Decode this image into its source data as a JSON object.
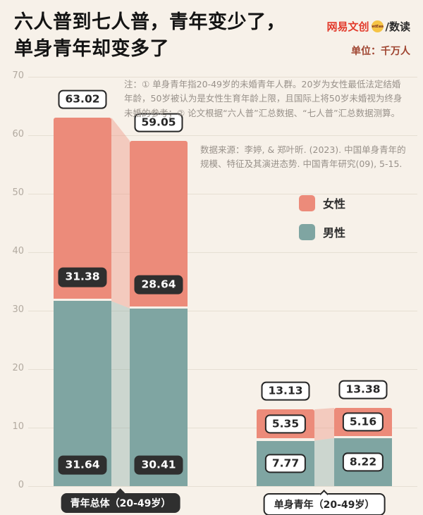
{
  "header": {
    "title_line1": "六人普到七人普，青年变少了，",
    "title_line2": "单身青年却变多了",
    "brand": {
      "name": "网易文创",
      "badge": "NetEase",
      "sub": "/数读"
    },
    "unit": "单位：千万人"
  },
  "notes": "注：① 单身青年指20-49岁的未婚青年人群。20岁为女性最低法定结婚年龄，50岁被认为是女性生育年龄上限，且国际上将50岁未婚视为终身未婚的参考；② 论文根据“六人普”汇总数据、“七人普”汇总数据测算。",
  "source": "数据来源：李婷, & 郑叶昕. (2023). 中国单身青年的规模、特征及其演进态势. 中国青年研究(09), 5-15.",
  "chart_data": {
    "type": "bar",
    "stacked": true,
    "unit": "千万人",
    "ylim": [
      0,
      70
    ],
    "yticks": [
      0,
      10,
      20,
      30,
      40,
      50,
      60,
      70
    ],
    "grid": true,
    "legend_position": "right",
    "legend": [
      {
        "label": "女性",
        "color": "#ec8b7a"
      },
      {
        "label": "男性",
        "color": "#7fa5a2"
      }
    ],
    "groups": [
      {
        "label": "青年总体（20-49岁）",
        "badge_style": "dark",
        "bars": [
          {
            "total": 63.02,
            "female": 31.38,
            "male": 31.64
          },
          {
            "total": 59.05,
            "female": 28.64,
            "male": 30.41
          }
        ]
      },
      {
        "label": "单身青年（20-49岁）",
        "badge_style": "light",
        "bars": [
          {
            "total": 13.13,
            "female": 5.35,
            "male": 7.77
          },
          {
            "total": 13.38,
            "female": 5.16,
            "male": 8.22
          }
        ]
      }
    ]
  }
}
